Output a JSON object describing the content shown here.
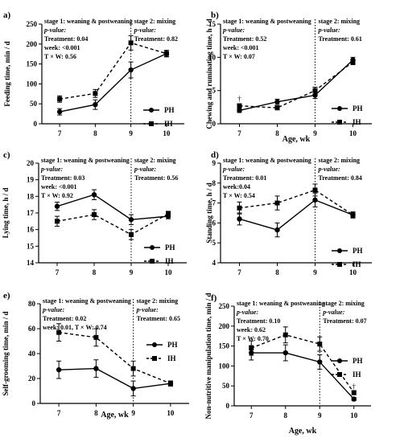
{
  "chart_data": [
    {
      "type": "line",
      "panel": "a)",
      "ylabel": "Feeding time, min / d",
      "xlabel": "",
      "ylim": [
        0,
        250
      ],
      "yticks": [
        0,
        50,
        100,
        150,
        200,
        250
      ],
      "x": [
        7,
        8,
        9,
        10
      ],
      "series": [
        {
          "name": "PH",
          "style": "solid",
          "marker": "circle",
          "values": [
            30,
            48,
            135,
            176
          ],
          "err": [
            8,
            12,
            20,
            8
          ]
        },
        {
          "name": "IH",
          "style": "dashed",
          "marker": "square",
          "values": [
            62,
            76,
            203,
            176
          ],
          "err": [
            8,
            10,
            18,
            8
          ]
        }
      ],
      "stage1": "stage 1: weaning & postweaning",
      "stage2": "stage 2: mixing",
      "s1_pval": "p-value:",
      "s1_lines": [
        "Treatment: 0.04",
        "week: <0.001",
        "T × W: 0.56"
      ],
      "s2_pval": "p-value:",
      "s2_lines": [
        "Treatment: 0.82"
      ],
      "dagger": [],
      "legend": "right"
    },
    {
      "type": "line",
      "panel": "b)",
      "ylabel": "Chewing and ruminating time, h / d",
      "xlabel": "Age, wk",
      "ylim": [
        0,
        15
      ],
      "yticks": [
        0,
        5,
        10,
        15
      ],
      "x": [
        7,
        8,
        9,
        10
      ],
      "series": [
        {
          "name": "PH",
          "style": "solid",
          "marker": "circle",
          "values": [
            2.0,
            3.3,
            4.3,
            9.6
          ],
          "err": [
            0.3,
            0.4,
            0.5,
            0.4
          ]
        },
        {
          "name": "IH",
          "style": "dashed",
          "marker": "square",
          "values": [
            2.7,
            2.4,
            5.0,
            9.3
          ],
          "err": [
            0.3,
            0.3,
            0.5,
            0.4
          ]
        }
      ],
      "stage1": "stage 1: weaning & postweaning",
      "stage2": "stage 2: mixing",
      "s1_pval": "p-value:",
      "s1_lines": [
        "Treatment: 0.52",
        "week: <0.001",
        "T × W: 0.07"
      ],
      "s2_pval": "p-value:",
      "s2_lines": [
        "Treatment: 0.61"
      ],
      "dagger": [
        {
          "x": 7,
          "v": 3.4,
          "text": "†"
        }
      ],
      "legend": "right"
    },
    {
      "type": "line",
      "panel": "c)",
      "ylabel": "Lying time, h / d",
      "xlabel": "",
      "ylim": [
        14,
        20
      ],
      "yticks": [
        14,
        15,
        16,
        17,
        18,
        19,
        20
      ],
      "x": [
        7,
        8,
        9,
        10
      ],
      "series": [
        {
          "name": "PH",
          "style": "solid",
          "marker": "circle",
          "values": [
            17.4,
            18.1,
            16.6,
            16.8
          ],
          "err": [
            0.25,
            0.3,
            0.3,
            0.15
          ]
        },
        {
          "name": "IH",
          "style": "dashed",
          "marker": "square",
          "values": [
            16.5,
            16.9,
            15.7,
            16.95
          ],
          "err": [
            0.3,
            0.3,
            0.3,
            0.15
          ]
        }
      ],
      "stage1": "stage 1: weaning & postweaning",
      "stage2": "stage 2: mixing",
      "s1_pval": "p-value:",
      "s1_lines": [
        "Treatment: 0.03",
        "week: <0.001",
        "T × W: 0.92"
      ],
      "s2_pval": "p-value:",
      "s2_lines": [
        "Treatment: 0.56"
      ],
      "dagger": [],
      "legend": "right"
    },
    {
      "type": "line",
      "panel": "d)",
      "ylabel": "Standing time, h / d",
      "xlabel": "",
      "ylim": [
        4,
        9
      ],
      "yticks": [
        4,
        5,
        6,
        7,
        8,
        9
      ],
      "x": [
        7,
        8,
        9,
        10
      ],
      "series": [
        {
          "name": "PH",
          "style": "solid",
          "marker": "circle",
          "values": [
            6.2,
            5.65,
            7.15,
            6.4
          ],
          "err": [
            0.3,
            0.35,
            0.35,
            0.15
          ]
        },
        {
          "name": "IH",
          "style": "dashed",
          "marker": "square",
          "values": [
            6.75,
            7.0,
            7.65,
            6.4
          ],
          "err": [
            0.3,
            0.35,
            0.3,
            0.15
          ]
        }
      ],
      "stage1": "stage 1: weaning & postweaning",
      "stage2": "stage 2: mixing",
      "s1_pval": "p-value:",
      "s1_lines": [
        "Treatment: 0.01",
        "week:0.04",
        "T × W: 0.54"
      ],
      "s2_pval": "p-value:",
      "s2_lines": [
        "Treatment: 0.84"
      ],
      "dagger": [],
      "legend": "right"
    },
    {
      "type": "line",
      "panel": "e)",
      "ylabel": "Self-grooming time, min / d",
      "xlabel": "Age, wk",
      "ylim": [
        0,
        80
      ],
      "yticks": [
        0,
        20,
        40,
        60,
        80
      ],
      "x": [
        7,
        8,
        9,
        10
      ],
      "series": [
        {
          "name": "PH",
          "style": "solid",
          "marker": "circle",
          "values": [
            27,
            28,
            12,
            16
          ],
          "err": [
            7,
            7,
            6,
            2
          ]
        },
        {
          "name": "IH",
          "style": "dashed",
          "marker": "square",
          "values": [
            57,
            53,
            28,
            16
          ],
          "err": [
            7,
            7,
            6,
            2
          ]
        }
      ],
      "stage1": "stage 1: weaning & postweaning",
      "stage2": "stage 2: mixing",
      "s1_pval": "p-value:",
      "s1_lines": [
        "Treatment: 0.02",
        "week: 0.01, T × W: 0.74"
      ],
      "s2_pval": "p-value:",
      "s2_lines": [
        "Treatment: 0.65"
      ],
      "dagger": [],
      "legend": "mid-right"
    },
    {
      "type": "line",
      "panel": "f)",
      "ylabel": "Non-nutritive manipulation time, min / d",
      "xlabel": "Age, wk",
      "ylim": [
        0,
        250
      ],
      "yticks": [
        0,
        50,
        100,
        150,
        200,
        250
      ],
      "x": [
        7,
        8,
        9,
        10
      ],
      "series": [
        {
          "name": "PH",
          "style": "solid",
          "marker": "circle",
          "values": [
            133,
            133,
            110,
            17
          ],
          "err": [
            18,
            20,
            18,
            4
          ]
        },
        {
          "name": "IH",
          "style": "dashed",
          "marker": "square",
          "values": [
            145,
            178,
            155,
            33
          ],
          "err": [
            18,
            20,
            18,
            5
          ]
        }
      ],
      "stage1": "stage 1: weaning & postweaning",
      "stage2": "stage 2: mixing",
      "s1_pval": "p-value:",
      "s1_lines": [
        "Treatment: 0.10",
        "week: 0.62",
        "T × W: 0.70"
      ],
      "s2_pval": "p-value:",
      "s2_lines": [
        "Treatment: 0.07"
      ],
      "dagger": [
        {
          "x": 10,
          "v": 42,
          "text": "†"
        }
      ],
      "legend": "right"
    }
  ]
}
